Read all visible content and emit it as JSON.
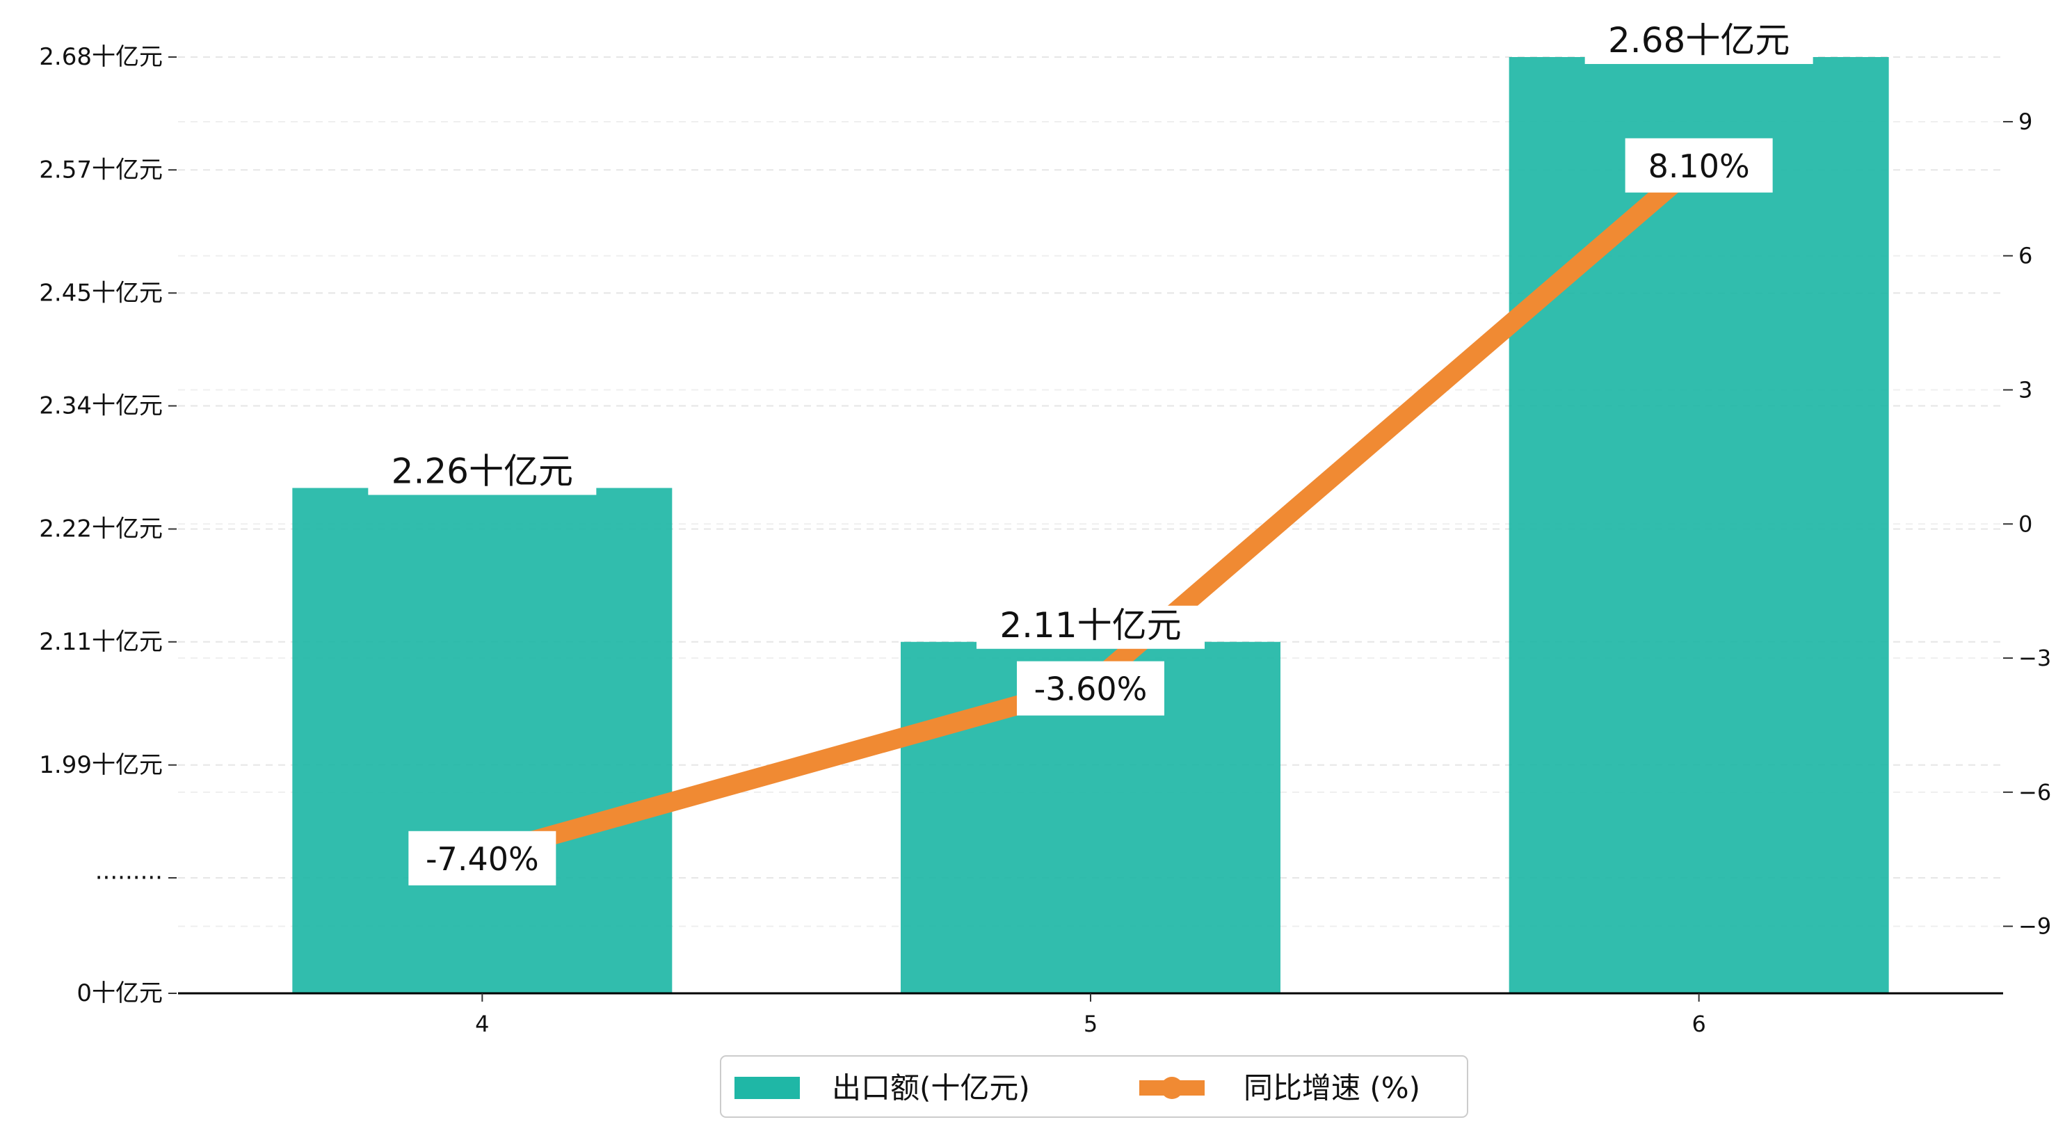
{
  "chart_data": {
    "type": "bar",
    "categories": [
      "4",
      "5",
      "6"
    ],
    "series": [
      {
        "name": "出口额(十亿元)",
        "type": "bar",
        "axis": "left",
        "color": "#1fb7a6",
        "values": [
          2.26,
          2.11,
          2.68
        ],
        "labels": [
          "2.26十亿元",
          "2.11十亿元",
          "2.68十亿元"
        ]
      },
      {
        "name": "同比增速 (%)",
        "type": "line",
        "axis": "right",
        "color": "#f08a33",
        "values": [
          -7.4,
          -3.6,
          8.1
        ],
        "labels": [
          "-7.40%",
          "-3.60%",
          "8.10%"
        ]
      }
    ],
    "y_left_ticks": [
      {
        "label": "0十亿元",
        "value": 0
      },
      {
        "label": "·········",
        "value": 1.88
      },
      {
        "label": "1.99十亿元",
        "value": 1.99
      },
      {
        "label": "2.11十亿元",
        "value": 2.11
      },
      {
        "label": "2.22十亿元",
        "value": 2.22
      },
      {
        "label": "2.34十亿元",
        "value": 2.34
      },
      {
        "label": "2.45十亿元",
        "value": 2.45
      },
      {
        "label": "2.57十亿元",
        "value": 2.57
      },
      {
        "label": "2.68十亿元",
        "value": 2.68
      }
    ],
    "y_left_note": "broken axis: values between 0 and 1.88 are omitted",
    "y_right_ticks": [
      "9",
      "6",
      "3",
      "0",
      "−3",
      "−6",
      "−9"
    ],
    "y_right_tick_values": [
      9,
      6,
      3,
      0,
      -3,
      -6,
      -9
    ],
    "y_right_range": [
      -10.5,
      11.1
    ],
    "grid": "horizontal dashed",
    "legend_position": "bottom-center",
    "title": "",
    "xlabel": "",
    "ylabel": ""
  }
}
